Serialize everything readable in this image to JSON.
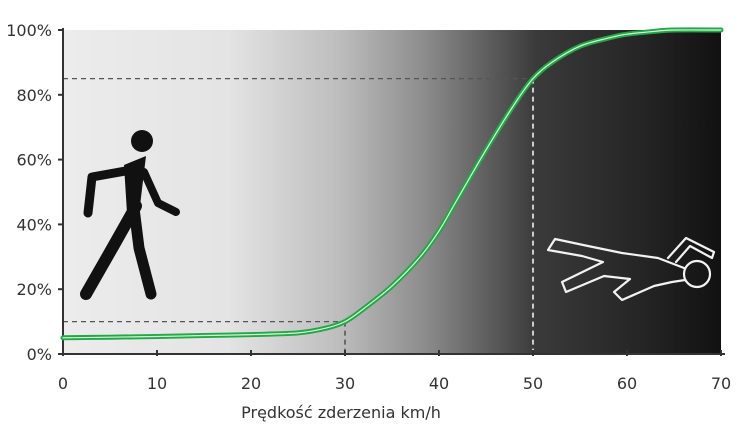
{
  "chart_data": {
    "type": "line",
    "title": "",
    "xlabel": "Prędkość zderzenia km/h",
    "ylabel": "",
    "xlim": [
      0,
      70
    ],
    "ylim": [
      0,
      100
    ],
    "x_ticks": [
      "0",
      "10",
      "20",
      "30",
      "40",
      "50",
      "60",
      "70"
    ],
    "y_ticks": [
      "0%",
      "20%",
      "40%",
      "60%",
      "80%",
      "100%"
    ],
    "grid": false,
    "series": [
      {
        "name": "",
        "color": "#22a845",
        "x": [
          0,
          5,
          10,
          15,
          20,
          25,
          28,
          30,
          32,
          35,
          38,
          40,
          42,
          45,
          48,
          50,
          52,
          55,
          58,
          60,
          63,
          65,
          70
        ],
        "y": [
          5,
          5.2,
          5.4,
          5.7,
          6,
          6.5,
          8,
          10,
          14,
          21,
          30,
          38,
          48,
          63,
          77,
          85,
          90,
          95,
          97.5,
          98.7,
          99.6,
          100,
          100
        ]
      }
    ],
    "reference_lines": [
      {
        "x": 30,
        "y": 10,
        "style": "dashed",
        "color": "#555555"
      },
      {
        "x": 50,
        "y": 85,
        "style": "dashed",
        "color": "#555555"
      }
    ],
    "background": "gradient from light grey (low speed) to black (high speed)",
    "icons": [
      "walking-pedestrian-icon",
      "lying-body-outline-icon"
    ]
  },
  "colors": {
    "curve": "#22a845",
    "curve_highlight": "#d8f5dc",
    "axis": "#333333",
    "text": "#333333"
  }
}
